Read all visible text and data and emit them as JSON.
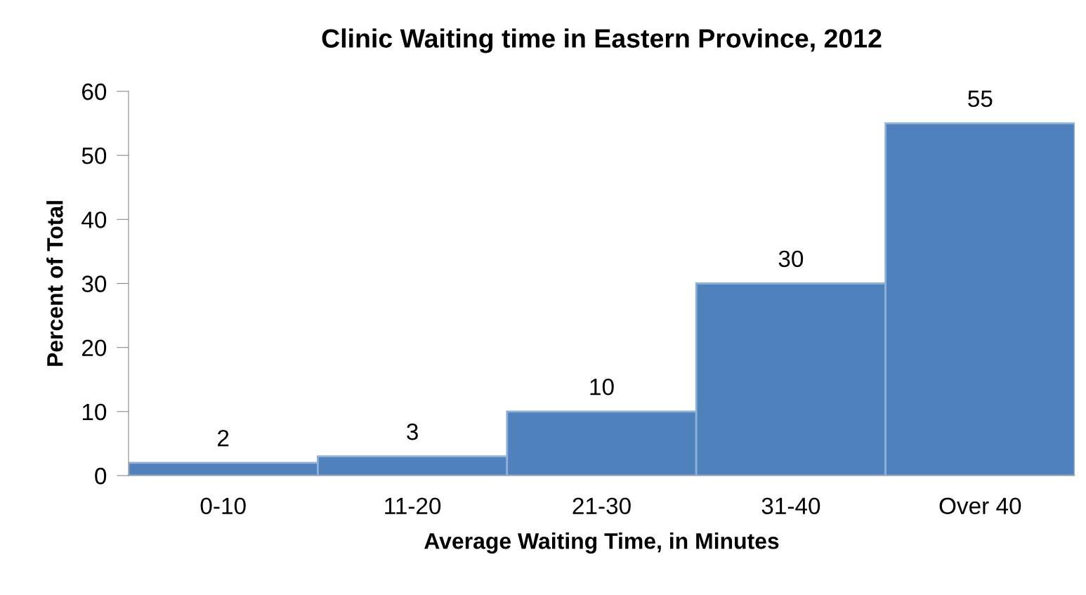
{
  "chart_data": {
    "type": "bar",
    "title": "Clinic Waiting time in Eastern Province, 2012",
    "xlabel": "Average Waiting Time, in Minutes",
    "ylabel": "Percent of Total",
    "categories": [
      "0-10",
      "11-20",
      "21-30",
      "31-40",
      "Over 40"
    ],
    "values": [
      2,
      3,
      10,
      30,
      55
    ],
    "color": "#4f81bd",
    "ylim": [
      0,
      60
    ],
    "yticks": [
      0,
      10,
      20,
      30,
      40,
      50,
      60
    ],
    "data_labels": true,
    "grid": false
  }
}
